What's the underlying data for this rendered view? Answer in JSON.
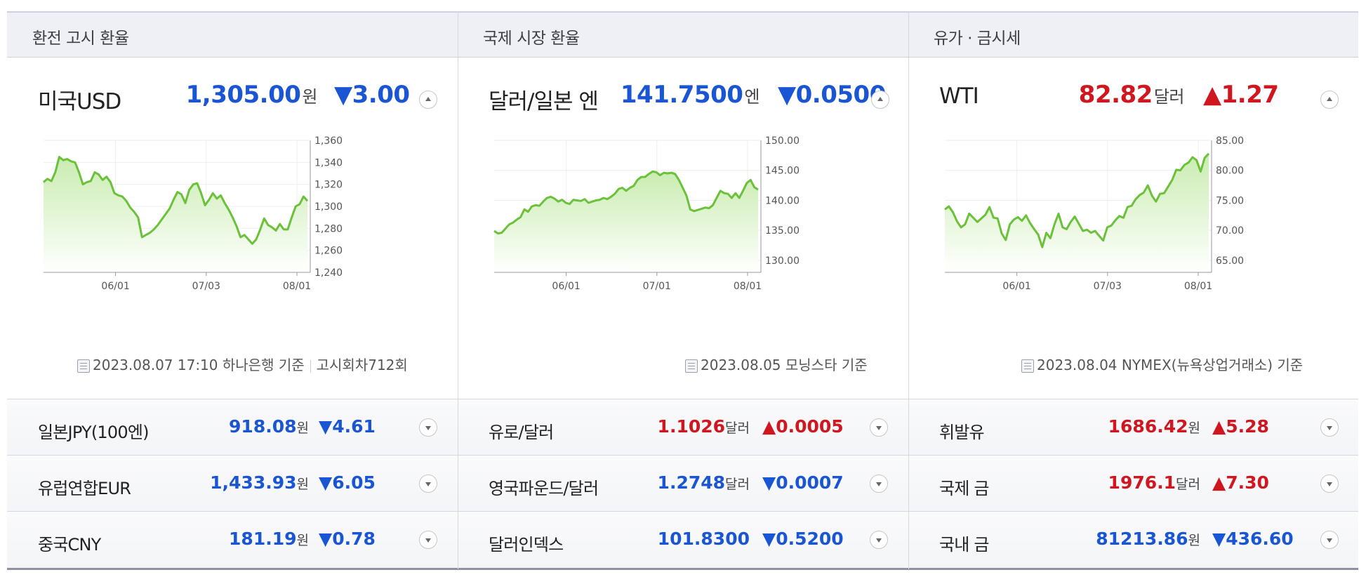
{
  "sections": [
    {
      "header": "환전 고시 환율",
      "main": {
        "name": "미국USD",
        "value": "1,305.00",
        "unit": "원",
        "change": "▼3.00",
        "direction": "down"
      },
      "footer": {
        "date": "2023.08.07 17:10 하나은행 기준",
        "extra": "고시회차712회"
      },
      "rows": [
        {
          "name": "일본JPY(100엔)",
          "value": "918.08",
          "unit": "원",
          "change": "▼4.61",
          "direction": "down"
        },
        {
          "name": "유럽연합EUR",
          "value": "1,433.93",
          "unit": "원",
          "change": "▼6.05",
          "direction": "down"
        },
        {
          "name": "중국CNY",
          "value": "181.19",
          "unit": "원",
          "change": "▼0.78",
          "direction": "down"
        }
      ]
    },
    {
      "header": "국제 시장 환율",
      "main": {
        "name": "달러/일본 엔",
        "value": "141.7500",
        "unit": "엔",
        "change": "▼0.0500",
        "direction": "down"
      },
      "footer": {
        "date": "2023.08.05 모닝스타 기준",
        "extra": ""
      },
      "rows": [
        {
          "name": "유로/달러",
          "value": "1.1026",
          "unit": "달러",
          "change": "▲0.0005",
          "direction": "up"
        },
        {
          "name": "영국파운드/달러",
          "value": "1.2748",
          "unit": "달러",
          "change": "▼0.0007",
          "direction": "down"
        },
        {
          "name": "달러인덱스",
          "value": "101.8300",
          "unit": "",
          "change": "▼0.5200",
          "direction": "down"
        }
      ]
    },
    {
      "header": "유가 · 금시세",
      "main": {
        "name": "WTI",
        "value": "82.82",
        "unit": "달러",
        "change": "▲1.27",
        "direction": "up"
      },
      "footer": {
        "date": "2023.08.04 NYMEX(뉴욕상업거래소) 기준",
        "extra": ""
      },
      "rows": [
        {
          "name": "휘발유",
          "value": "1686.42",
          "unit": "원",
          "change": "▲5.28",
          "direction": "up"
        },
        {
          "name": "국제 금",
          "value": "1976.1",
          "unit": "달러",
          "change": "▲7.30",
          "direction": "up"
        },
        {
          "name": "국내 금",
          "value": "81213.86",
          "unit": "원",
          "change": "▼436.60",
          "direction": "down"
        }
      ]
    }
  ],
  "colors": {
    "up": "#d0161e",
    "down": "#1a56d3",
    "line": "#6cc13a",
    "fill_top": "#c9ecb0",
    "fill_bottom": "#ffffff"
  },
  "chart_data": [
    {
      "type": "area",
      "x_ticks": [
        "06/01",
        "07/03",
        "08/01"
      ],
      "y_ticks": [
        "1,360",
        "1,340",
        "1,320",
        "1,300",
        "1,280",
        "1,260",
        "1,240"
      ],
      "ylim": [
        1240,
        1360
      ],
      "values": [
        1322,
        1325,
        1323,
        1331,
        1345,
        1342,
        1343,
        1341,
        1340,
        1331,
        1320,
        1322,
        1323,
        1331,
        1329,
        1324,
        1327,
        1322,
        1312,
        1310,
        1309,
        1305,
        1299,
        1295,
        1290,
        1272,
        1274,
        1276,
        1279,
        1283,
        1288,
        1293,
        1298,
        1306,
        1313,
        1311,
        1303,
        1315,
        1320,
        1321,
        1312,
        1301,
        1306,
        1312,
        1307,
        1310,
        1303,
        1297,
        1290,
        1282,
        1272,
        1274,
        1270,
        1266,
        1270,
        1279,
        1289,
        1283,
        1281,
        1278,
        1284,
        1279,
        1279,
        1290,
        1300,
        1302,
        1309,
        1305
      ]
    },
    {
      "type": "area",
      "x_ticks": [
        "06/01",
        "07/01",
        "08/01"
      ],
      "y_ticks": [
        "150.00",
        "145.00",
        "140.00",
        "135.00",
        "130.00"
      ],
      "ylim": [
        128,
        150
      ],
      "values": [
        134.9,
        134.5,
        134.6,
        135.3,
        136,
        136.3,
        136.8,
        137.2,
        138.5,
        138.1,
        139,
        139.2,
        139.1,
        139.8,
        140.4,
        140.6,
        140.3,
        139.8,
        140.1,
        139.6,
        139.4,
        140.1,
        140,
        139.9,
        140.2,
        139.6,
        139.8,
        140,
        140.1,
        140.4,
        140.2,
        140.6,
        141.1,
        141.9,
        142.1,
        141.6,
        142.1,
        142.4,
        143.4,
        143.9,
        143.9,
        144.4,
        144.8,
        144.7,
        144.2,
        144.6,
        144.5,
        144.6,
        144.4,
        143.4,
        142.1,
        140.8,
        138.5,
        138.2,
        138.4,
        138.6,
        138.8,
        138.7,
        139.2,
        140.4,
        141.6,
        141.2,
        141.1,
        140.4,
        141.2,
        140.4,
        141.6,
        142.9,
        143.4,
        142.2,
        141.8
      ]
    },
    {
      "type": "area",
      "x_ticks": [
        "06/01",
        "07/03",
        "08/01"
      ],
      "y_ticks": [
        "85.00",
        "80.00",
        "75.00",
        "70.00",
        "65.00"
      ],
      "ylim": [
        63,
        85
      ],
      "values": [
        73.5,
        74,
        73,
        71.5,
        70.5,
        71,
        72.8,
        72.1,
        71.4,
        72,
        72.6,
        73.9,
        72.1,
        72,
        69.5,
        68.4,
        71,
        71.8,
        72.2,
        71.6,
        72.5,
        71.2,
        70.2,
        69.3,
        67.2,
        69.6,
        68.7,
        71,
        72.8,
        70.5,
        70.2,
        71.4,
        72.3,
        71.1,
        69.9,
        70.1,
        69.6,
        69.9,
        69.1,
        68.3,
        70.5,
        70.8,
        71.7,
        72.4,
        72.1,
        73.9,
        74.1,
        75.2,
        75.9,
        76.3,
        77.5,
        75.8,
        74.8,
        76.1,
        76.2,
        77.3,
        78.4,
        80.1,
        80,
        80.9,
        81.3,
        82.2,
        81.7,
        79.8,
        82.1,
        82.8
      ]
    }
  ]
}
